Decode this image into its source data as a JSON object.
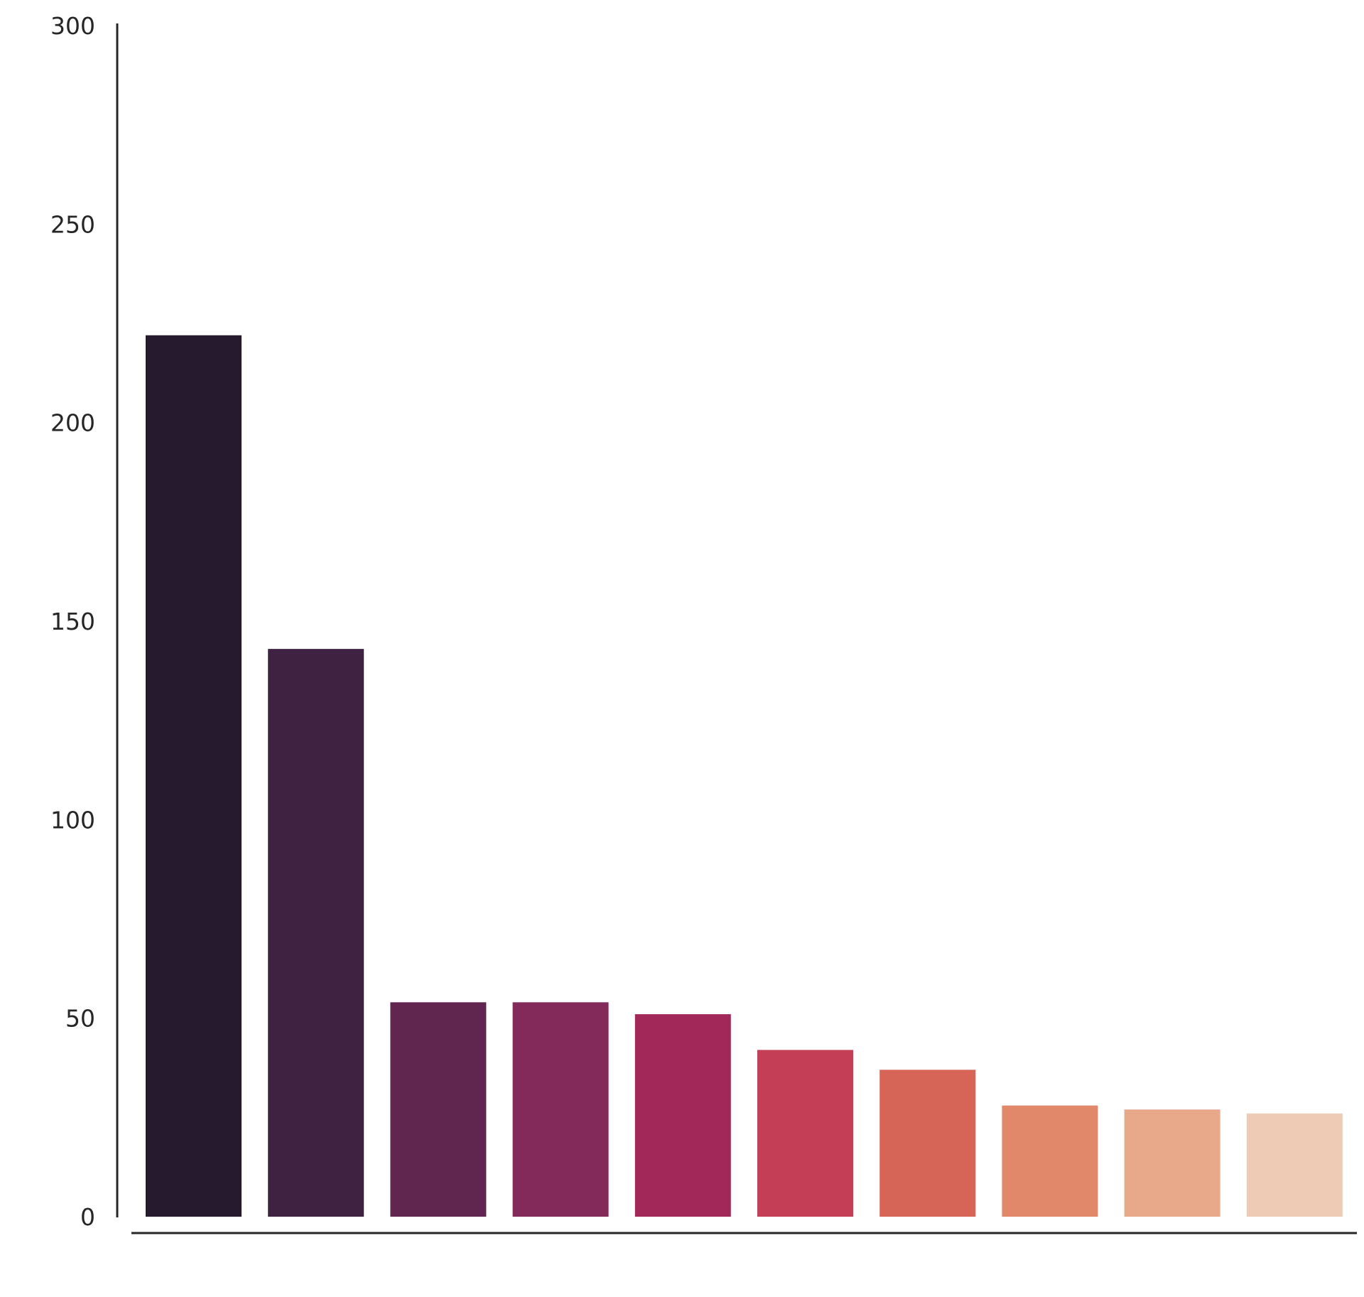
{
  "chart_data": {
    "type": "bar",
    "title": "",
    "xlabel": "",
    "ylabel": "",
    "categories": [
      "",
      "",
      "",
      "",
      "",
      "",
      "",
      "",
      "",
      ""
    ],
    "values": [
      222,
      143,
      54,
      54,
      51,
      42,
      37,
      28,
      27,
      26
    ],
    "ylim": [
      0,
      300
    ],
    "yticks": [
      0,
      50,
      100,
      150,
      200,
      250,
      300
    ],
    "ytick_labels": [
      "0",
      "50",
      "100",
      "150",
      "200",
      "250",
      "300"
    ],
    "grid": false,
    "legend": "none",
    "colors": [
      "#251a2e",
      "#3f2142",
      "#61264f",
      "#842a5b",
      "#a2285a",
      "#c43f56",
      "#d76557",
      "#e1886a",
      "#e7a98a",
      "#edcbb4"
    ],
    "axis_color": "#262626"
  }
}
